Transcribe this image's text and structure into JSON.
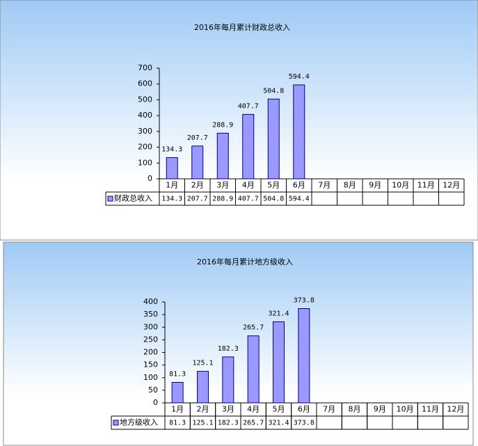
{
  "chart_data": [
    {
      "type": "bar",
      "title": "2016年每月累计财政总收入",
      "categories": [
        "1月",
        "2月",
        "3月",
        "4月",
        "5月",
        "6月",
        "7月",
        "8月",
        "9月",
        "10月",
        "11月",
        "12月"
      ],
      "series": [
        {
          "name": "财政总收入",
          "color": "#9999ff",
          "values": [
            134.3,
            207.7,
            288.9,
            407.7,
            504.8,
            594.4,
            null,
            null,
            null,
            null,
            null,
            null
          ]
        }
      ],
      "ylim": [
        0,
        700
      ],
      "yticks": [
        0,
        100,
        200,
        300,
        400,
        500,
        600,
        700
      ]
    },
    {
      "type": "bar",
      "title": "2016年每月累计地方级收入",
      "categories": [
        "1月",
        "2月",
        "3月",
        "4月",
        "5月",
        "6月",
        "7月",
        "8月",
        "9月",
        "10月",
        "11月",
        "12月"
      ],
      "series": [
        {
          "name": "地方级收入",
          "color": "#9999ff",
          "values": [
            81.3,
            125.1,
            182.3,
            265.7,
            321.4,
            373.8,
            null,
            null,
            null,
            null,
            null,
            null
          ]
        }
      ],
      "ylim": [
        0,
        400
      ],
      "yticks": [
        0,
        50,
        100,
        150,
        200,
        250,
        300,
        350,
        400
      ]
    }
  ]
}
